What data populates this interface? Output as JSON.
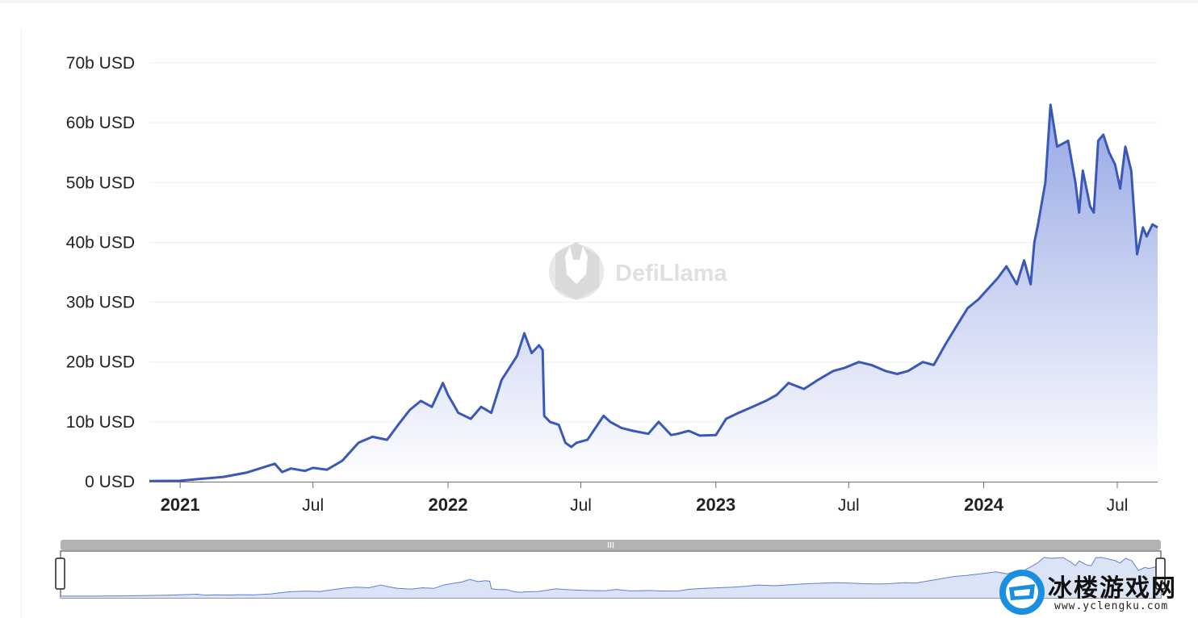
{
  "chart_data": {
    "type": "area",
    "title": "",
    "xlabel": "",
    "ylabel": "",
    "y_unit": "USD",
    "ylim": [
      0,
      70000000000
    ],
    "y_ticks": [
      {
        "value": 0,
        "label": "0 USD"
      },
      {
        "value": 10000000000,
        "label": "10b USD"
      },
      {
        "value": 20000000000,
        "label": "20b USD"
      },
      {
        "value": 30000000000,
        "label": "30b USD"
      },
      {
        "value": 40000000000,
        "label": "40b USD"
      },
      {
        "value": 50000000000,
        "label": "50b USD"
      },
      {
        "value": 60000000000,
        "label": "60b USD"
      },
      {
        "value": 70000000000,
        "label": "70b USD"
      }
    ],
    "xlim": [
      "2020-11-20",
      "2024-08-25"
    ],
    "x_ticks": [
      {
        "date": "2021-01-01",
        "label": "2021",
        "major": true
      },
      {
        "date": "2021-07-01",
        "label": "Jul",
        "major": false
      },
      {
        "date": "2022-01-01",
        "label": "2022",
        "major": true
      },
      {
        "date": "2022-07-01",
        "label": "Jul",
        "major": false
      },
      {
        "date": "2023-01-01",
        "label": "2023",
        "major": true
      },
      {
        "date": "2023-07-01",
        "label": "Jul",
        "major": false
      },
      {
        "date": "2024-01-01",
        "label": "2024",
        "major": true
      },
      {
        "date": "2024-07-01",
        "label": "Jul",
        "major": false
      }
    ],
    "grid": true,
    "legend": "none",
    "series_color": "#3a58b8",
    "fill_color_top": "#8fa2e3",
    "fill_color_bottom": "#ffffff",
    "series": [
      {
        "x": [
          "2020-11-20",
          "2021-01-01",
          "2021-02-01",
          "2021-03-01",
          "2021-04-01",
          "2021-05-10",
          "2021-05-20",
          "2021-06-01",
          "2021-06-20",
          "2021-07-01",
          "2021-07-20",
          "2021-08-10",
          "2021-09-01",
          "2021-09-20",
          "2021-10-10",
          "2021-10-25",
          "2021-11-10",
          "2021-11-25",
          "2021-12-10",
          "2021-12-25",
          "2022-01-01",
          "2022-01-15",
          "2022-02-01",
          "2022-02-15",
          "2022-03-01",
          "2022-03-15",
          "2022-04-05",
          "2022-04-15",
          "2022-04-25",
          "2022-05-05",
          "2022-05-10",
          "2022-05-12",
          "2022-05-20",
          "2022-06-01",
          "2022-06-10",
          "2022-06-18",
          "2022-06-25",
          "2022-07-10",
          "2022-08-01",
          "2022-08-10",
          "2022-08-25",
          "2022-09-10",
          "2022-10-01",
          "2022-10-15",
          "2022-11-01",
          "2022-11-10",
          "2022-11-25",
          "2022-12-10",
          "2023-01-01",
          "2023-01-15",
          "2023-02-01",
          "2023-02-20",
          "2023-03-10",
          "2023-03-25",
          "2023-04-10",
          "2023-05-01",
          "2023-05-20",
          "2023-06-10",
          "2023-06-25",
          "2023-07-15",
          "2023-08-01",
          "2023-08-20",
          "2023-09-05",
          "2023-09-20",
          "2023-10-10",
          "2023-10-25",
          "2023-11-10",
          "2023-11-25",
          "2023-12-10",
          "2023-12-25",
          "2024-01-05",
          "2024-01-20",
          "2024-02-01",
          "2024-02-15",
          "2024-02-25",
          "2024-03-05",
          "2024-03-10",
          "2024-03-15",
          "2024-03-25",
          "2024-04-01",
          "2024-04-10",
          "2024-04-25",
          "2024-05-05",
          "2024-05-10",
          "2024-05-15",
          "2024-05-25",
          "2024-05-30",
          "2024-06-05",
          "2024-06-12",
          "2024-06-20",
          "2024-06-28",
          "2024-07-05",
          "2024-07-12",
          "2024-07-20",
          "2024-07-28",
          "2024-08-05",
          "2024-08-10",
          "2024-08-18",
          "2024-08-25"
        ],
        "values": [
          100000000,
          150000000,
          500000000,
          800000000,
          1500000000,
          3000000000,
          1600000000,
          2200000000,
          1800000000,
          2300000000,
          2000000000,
          3500000000,
          6500000000,
          7500000000,
          7000000000,
          9500000000,
          12000000000,
          13500000000,
          12500000000,
          16500000000,
          14500000000,
          11500000000,
          10500000000,
          12500000000,
          11500000000,
          17000000000,
          21000000000,
          24800000000,
          21500000000,
          22800000000,
          22000000000,
          11000000000,
          10000000000,
          9500000000,
          6500000000,
          5800000000,
          6500000000,
          7000000000,
          11000000000,
          10000000000,
          9000000000,
          8500000000,
          8000000000,
          10000000000,
          7800000000,
          8000000000,
          8500000000,
          7700000000,
          7800000000,
          10500000000,
          11500000000,
          12500000000,
          13500000000,
          14500000000,
          16500000000,
          15500000000,
          17000000000,
          18500000000,
          19000000000,
          20000000000,
          19500000000,
          18500000000,
          18000000000,
          18500000000,
          20000000000,
          19500000000,
          23000000000,
          26000000000,
          29000000000,
          30500000000,
          32000000000,
          34000000000,
          36000000000,
          33000000000,
          37000000000,
          33000000000,
          40000000000,
          43000000000,
          50000000000,
          63000000000,
          56000000000,
          57000000000,
          50000000000,
          45000000000,
          52000000000,
          46000000000,
          45000000000,
          57000000000,
          58000000000,
          55000000000,
          53000000000,
          49000000000,
          56000000000,
          52000000000,
          38000000000,
          42500000000,
          41000000000,
          43000000000,
          42500000000
        ]
      }
    ],
    "watermark": {
      "text": "DefiLlama",
      "icon": "llama-logo-icon"
    },
    "range_slider": {
      "handle_icon": "grip-icon",
      "start_handle_icon": "slider-left-handle-icon",
      "end_handle_icon": "slider-right-handle-icon"
    }
  },
  "branding": {
    "logo_icon": "yclengku-logo-icon",
    "site_name": "冰楼游戏网",
    "site_url": "www.yclengku.com"
  }
}
